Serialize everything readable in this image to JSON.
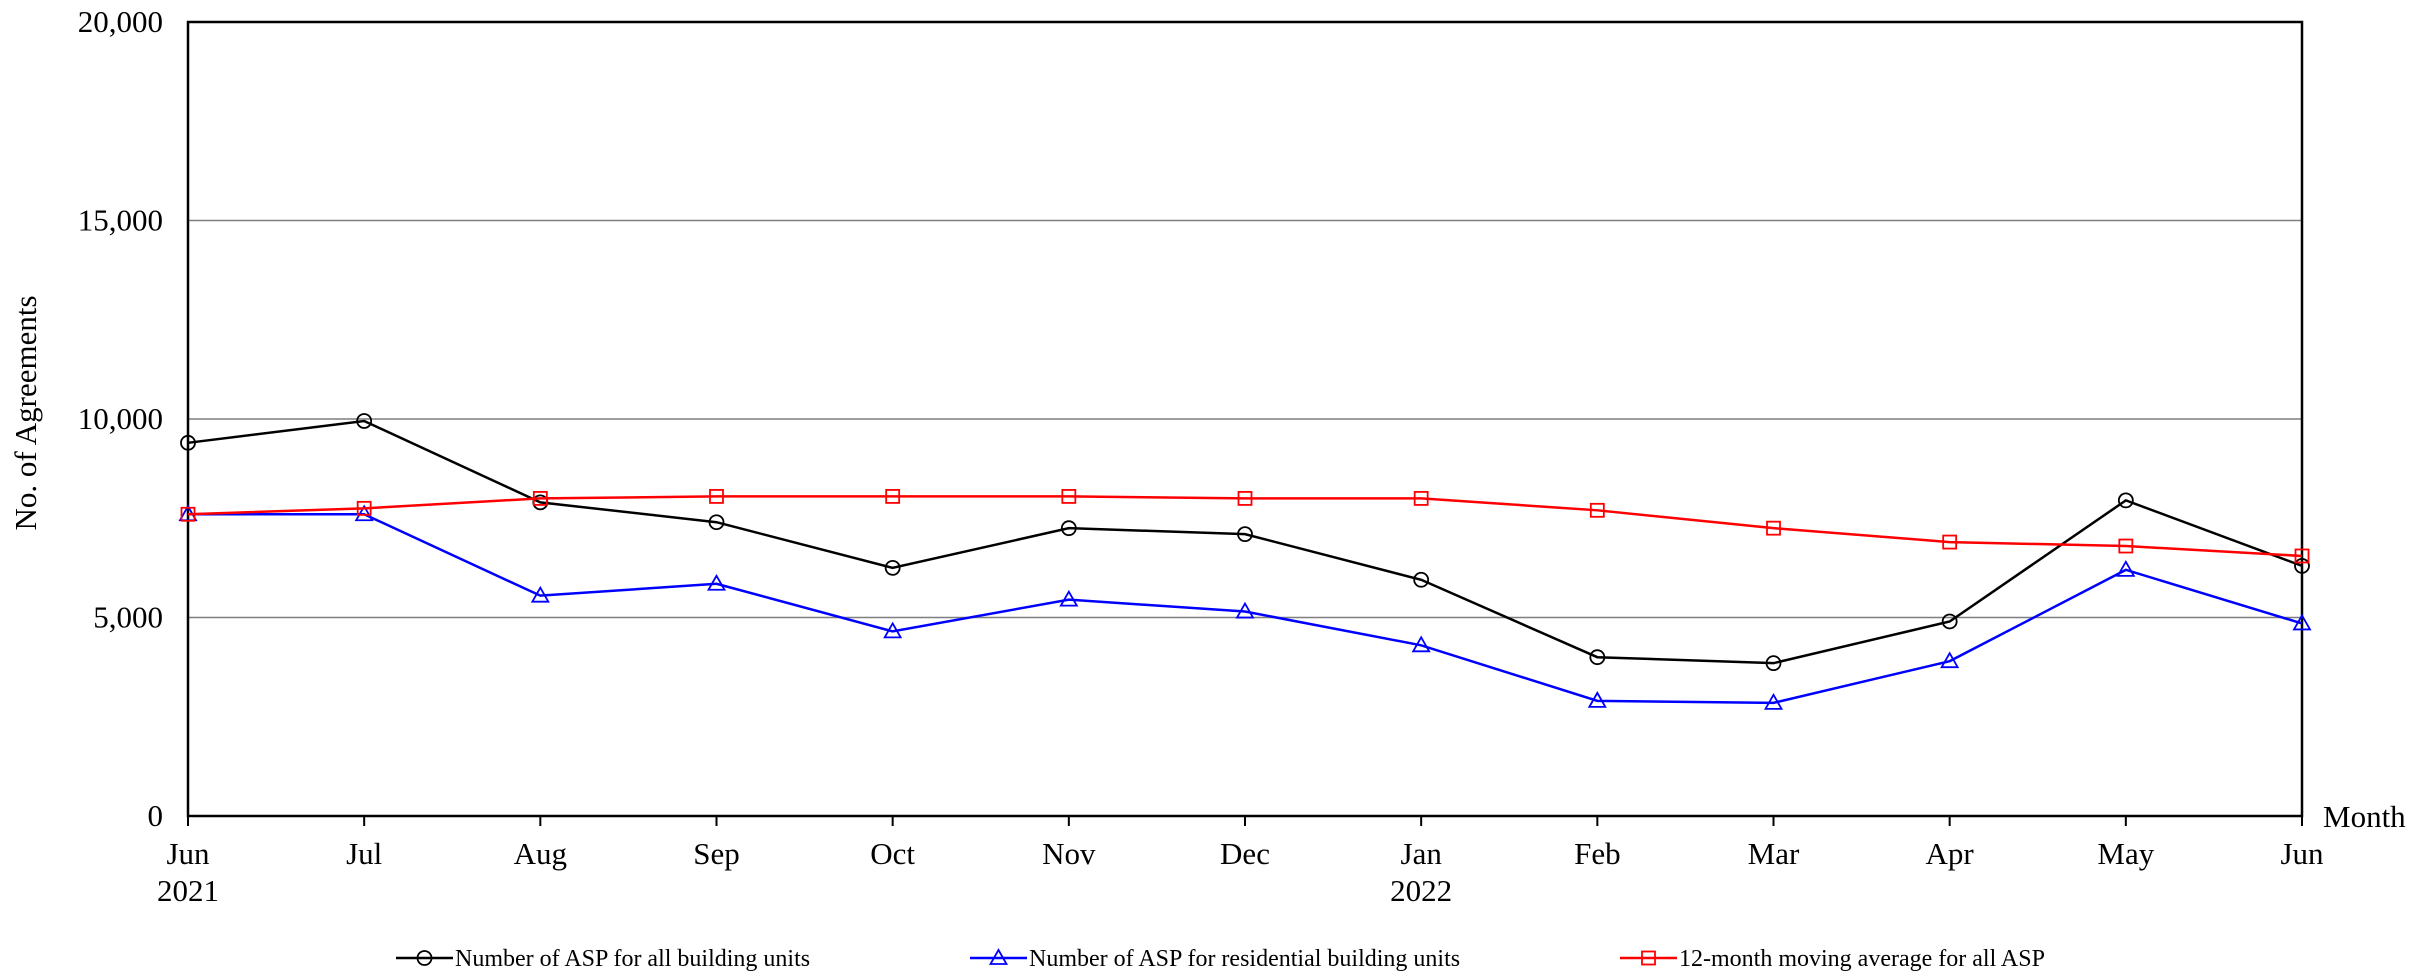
{
  "chart_data": {
    "type": "line",
    "title": "",
    "ylabel": "No. of Agreements",
    "xlabel": "Month",
    "ylim": [
      0,
      20000
    ],
    "yticks": [
      0,
      5000,
      10000,
      15000,
      20000
    ],
    "ytick_labels": [
      "0",
      "5,000",
      "10,000",
      "15,000",
      "20,000"
    ],
    "grid": "horizontal",
    "legend_position": "bottom",
    "categories": [
      "Jun",
      "Jul",
      "Aug",
      "Sep",
      "Oct",
      "Nov",
      "Dec",
      "Jan",
      "Feb",
      "Mar",
      "Apr",
      "May",
      "Jun"
    ],
    "year_labels": [
      "2021",
      "",
      "",
      "",
      "",
      "",
      "",
      "2022",
      "",
      "",
      "",
      "",
      ""
    ],
    "series": [
      {
        "name": "Number of ASP for all building units",
        "color": "#000000",
        "marker": "circle",
        "values": [
          9400,
          9950,
          7900,
          7400,
          6250,
          7250,
          7100,
          5950,
          4000,
          3850,
          4900,
          7950,
          6300
        ]
      },
      {
        "name": "Number of ASP for residential building units",
        "color": "#0000ff",
        "marker": "triangle",
        "values": [
          7600,
          7600,
          5550,
          5850,
          4650,
          5450,
          5150,
          4300,
          2900,
          2850,
          3900,
          6200,
          4850
        ]
      },
      {
        "name": "12-month moving average for all ASP",
        "color": "#ff0000",
        "marker": "square",
        "values": [
          7600,
          7750,
          8000,
          8050,
          8050,
          8050,
          8000,
          8000,
          7700,
          7250,
          6900,
          6800,
          6550
        ]
      }
    ]
  }
}
